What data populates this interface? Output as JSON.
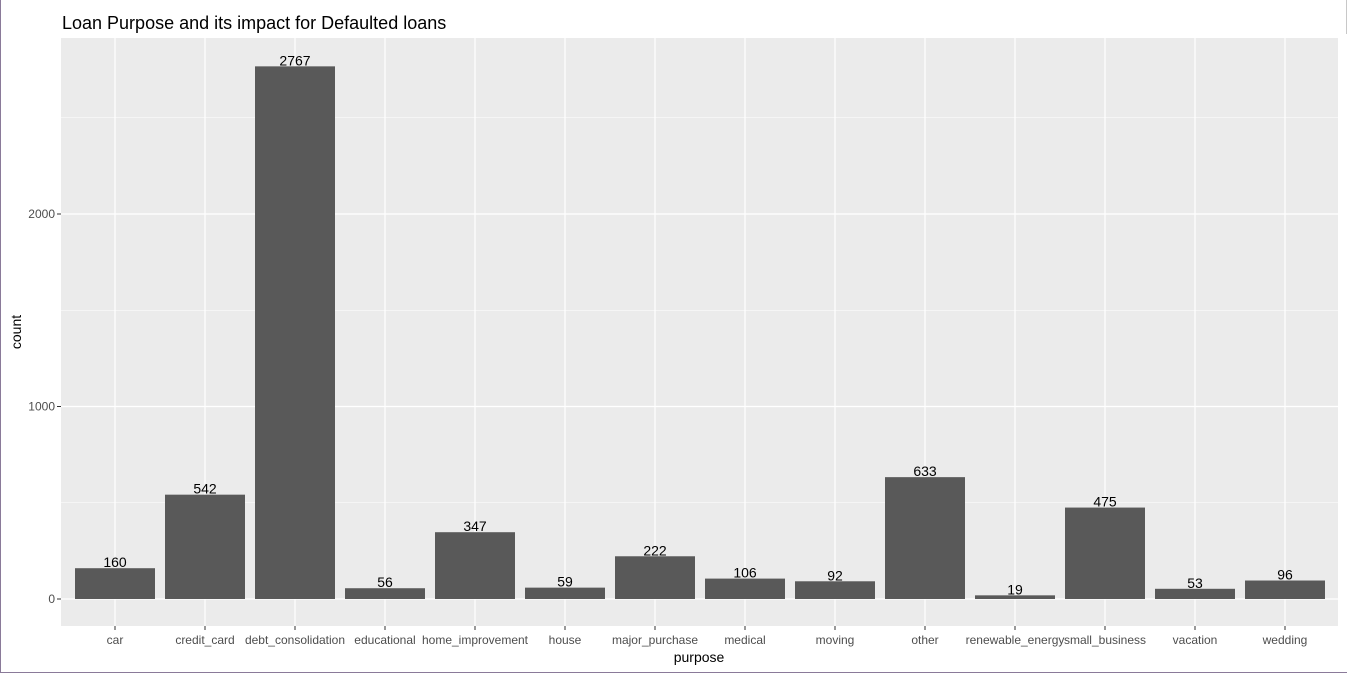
{
  "chart_data": {
    "type": "bar",
    "title": "Loan Purpose and its impact for Defaulted loans",
    "xlabel": "purpose",
    "ylabel": "count",
    "categories": [
      "car",
      "credit_card",
      "debt_consolidation",
      "educational",
      "home_improvement",
      "house",
      "major_purchase",
      "medical",
      "moving",
      "other",
      "renewable_energy",
      "small_business",
      "vacation",
      "wedding"
    ],
    "values": [
      160,
      542,
      2767,
      56,
      347,
      59,
      222,
      106,
      92,
      633,
      19,
      475,
      53,
      96
    ],
    "yticks": [
      0,
      1000,
      2000
    ],
    "ylim": [
      -145,
      2900
    ],
    "grid": true,
    "legend": "none",
    "colors": {
      "bar": "#595959",
      "panel": "#ebebeb",
      "grid_major": "#ffffff",
      "text": "#000000",
      "tick_text": "#4d4d4d"
    }
  }
}
